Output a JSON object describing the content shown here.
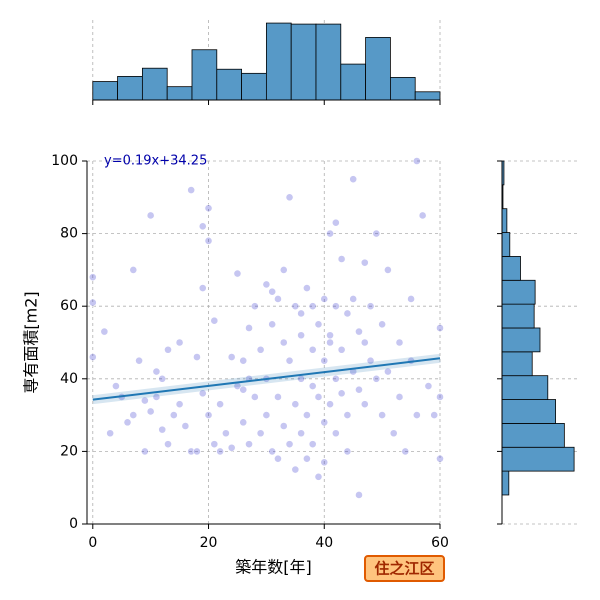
{
  "chart_data": [
    {
      "type": "scatter",
      "xlabel": "築年数[年]",
      "ylabel": "専有面積[m2]",
      "annotation": "y=0.19x+34.25",
      "color": "#3333cc",
      "xlim": [
        -1,
        60
      ],
      "ylim": [
        0,
        100
      ],
      "xticks": [
        0,
        20,
        40,
        60
      ],
      "yticks": [
        0,
        20,
        40,
        60,
        80,
        100
      ],
      "grid": true,
      "x": [
        0,
        0,
        0,
        2,
        3,
        4,
        5,
        6,
        7,
        7,
        8,
        9,
        9,
        10,
        10,
        11,
        11,
        12,
        12,
        13,
        13,
        14,
        15,
        15,
        16,
        17,
        17,
        18,
        18,
        19,
        19,
        20,
        20,
        20,
        21,
        21,
        22,
        22,
        23,
        24,
        25,
        25,
        26,
        26,
        27,
        27,
        28,
        28,
        29,
        29,
        30,
        30,
        30,
        31,
        31,
        32,
        32,
        32,
        33,
        33,
        33,
        34,
        34,
        34,
        35,
        35,
        35,
        36,
        36,
        36,
        37,
        37,
        37,
        38,
        38,
        38,
        39,
        39,
        39,
        40,
        40,
        40,
        40,
        41,
        41,
        41,
        42,
        42,
        42,
        43,
        43,
        43,
        44,
        44,
        45,
        45,
        45,
        46,
        46,
        46,
        47,
        47,
        47,
        48,
        48,
        49,
        49,
        50,
        50,
        51,
        51,
        52,
        53,
        53,
        54,
        55,
        55,
        56,
        57,
        58,
        59,
        60,
        60,
        60,
        56,
        42,
        41,
        38,
        36,
        31,
        27,
        24,
        19,
        44,
        26
      ],
      "values": [
        68,
        61,
        46,
        53,
        25,
        38,
        35,
        28,
        30,
        70,
        45,
        34,
        20,
        31,
        85,
        35,
        42,
        26,
        40,
        22,
        48,
        30,
        50,
        33,
        27,
        20,
        92,
        20,
        46,
        65,
        82,
        87,
        78,
        30,
        22,
        56,
        33,
        20,
        25,
        21,
        69,
        38,
        45,
        28,
        54,
        22,
        60,
        35,
        25,
        48,
        66,
        40,
        30,
        20,
        55,
        62,
        35,
        18,
        50,
        27,
        70,
        90,
        45,
        22,
        60,
        33,
        15,
        52,
        40,
        25,
        65,
        30,
        18,
        48,
        38,
        22,
        55,
        35,
        13,
        62,
        45,
        28,
        17,
        52,
        33,
        80,
        60,
        40,
        25,
        73,
        48,
        36,
        58,
        30,
        95,
        62,
        42,
        53,
        37,
        8,
        72,
        50,
        33,
        60,
        45,
        80,
        40,
        55,
        30,
        70,
        42,
        25,
        50,
        35,
        20,
        62,
        45,
        30,
        85,
        38,
        30,
        54,
        35,
        18,
        100,
        83,
        50,
        60,
        58,
        64,
        40,
        46,
        36,
        20,
        37
      ],
      "fit": {
        "color": "#1f77b4",
        "x": [
          0,
          60
        ],
        "values": [
          34.25,
          45.65
        ]
      }
    },
    {
      "type": "histogram",
      "orientation": "vertical",
      "color": "#5799c7",
      "xlim": [
        -1,
        60
      ],
      "xticks": [
        0,
        20,
        40,
        60
      ],
      "ylim": [
        0,
        78
      ],
      "bins": [
        0,
        4.286,
        8.571,
        12.857,
        17.143,
        21.429,
        25.714,
        30,
        34.286,
        38.571,
        42.857,
        47.143,
        51.429,
        55.714,
        60
      ],
      "values": [
        18,
        23,
        31,
        13,
        49,
        30,
        26,
        75,
        74,
        74,
        35,
        61,
        22,
        8
      ]
    },
    {
      "type": "histogram",
      "orientation": "horizontal",
      "color": "#5799c7",
      "ylim": [
        0,
        100
      ],
      "yticks": [
        0,
        20,
        40,
        60,
        80,
        100
      ],
      "xlim": [
        0,
        78
      ],
      "bins": [
        8,
        14.57,
        21.14,
        27.71,
        34.29,
        40.86,
        47.43,
        54,
        60.57,
        67.14,
        73.71,
        80.29,
        86.86,
        93.43,
        100
      ],
      "values": [
        7,
        74,
        64,
        55,
        47,
        31,
        39,
        33,
        34,
        19,
        8,
        5,
        1,
        2
      ]
    }
  ],
  "badge": "住之江区"
}
